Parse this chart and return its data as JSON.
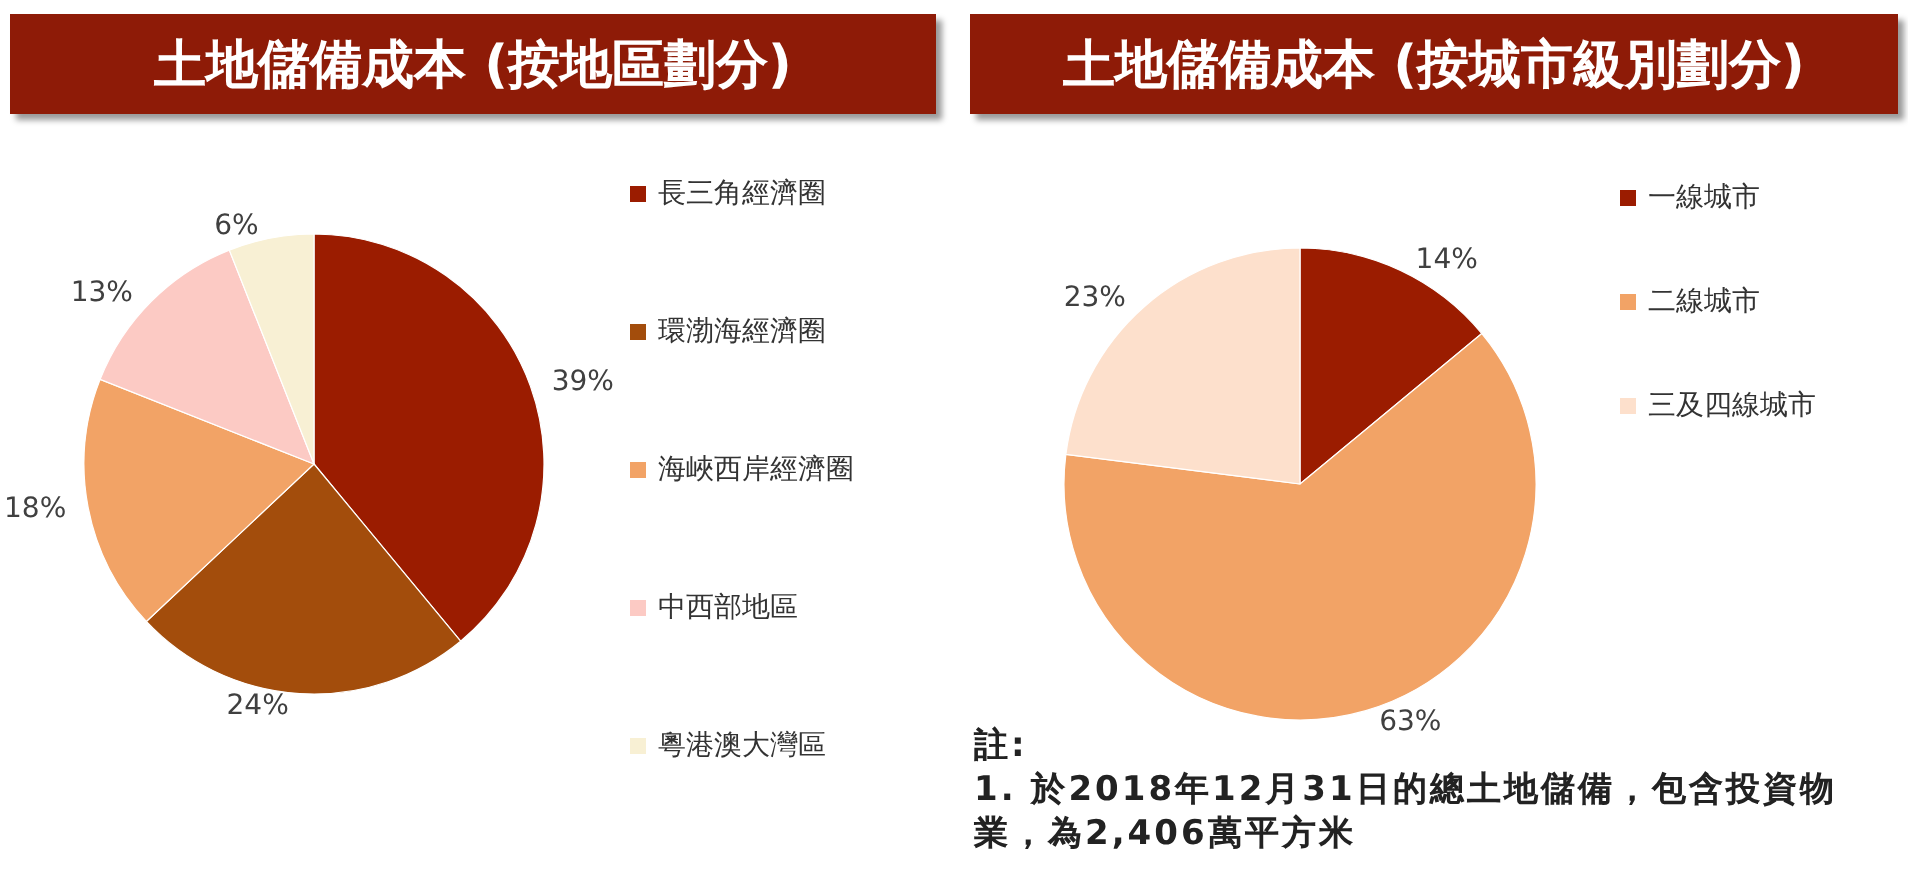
{
  "chart_data": [
    {
      "type": "pie",
      "title": "土地儲備成本 (按地區劃分)",
      "categories": [
        "長三角經濟圈",
        "環渤海經濟圈",
        "海峽西岸經濟圈",
        "中西部地區",
        "粵港澳大灣區"
      ],
      "values": [
        39,
        24,
        18,
        13,
        6
      ],
      "colors": [
        "#9b1c00",
        "#a34d0c",
        "#f2a366",
        "#fccac4",
        "#f8f0d4"
      ],
      "value_labels": [
        "39%",
        "24%",
        "18%",
        "13%",
        "6%"
      ],
      "legend": "right"
    },
    {
      "type": "pie",
      "title": "土地儲備成本 (按城市級別劃分)",
      "categories": [
        "一線城市",
        "二線城市",
        "三及四線城市"
      ],
      "values": [
        14,
        63,
        23
      ],
      "colors": [
        "#9b1c00",
        "#f2a366",
        "#fde0cc"
      ],
      "value_labels": [
        "14%",
        "63%",
        "23%"
      ],
      "legend": "right",
      "annotations": [
        "註:",
        "1. 於2018年12月31日的總土地儲備，包含投資物業，為2,406萬平方米"
      ]
    }
  ]
}
